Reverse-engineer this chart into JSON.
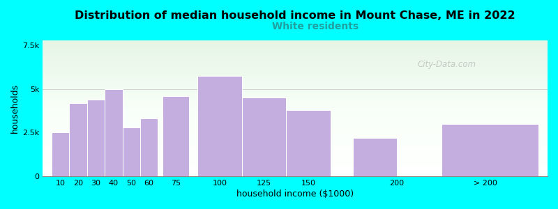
{
  "title": "Distribution of median household income in Mount Chase, ME in 2022",
  "subtitle": "White residents",
  "xlabel": "household income ($1000)",
  "ylabel": "households",
  "background_color": "#00FFFF",
  "bar_color": "#C4AEE0",
  "bar_edge_color": "#ffffff",
  "title_fontsize": 11.5,
  "subtitle_fontsize": 10,
  "subtitle_color": "#20a0a0",
  "axis_label_fontsize": 9,
  "tick_fontsize": 8,
  "categories": [
    "10",
    "20",
    "30",
    "40",
    "50",
    "60",
    "75",
    "100",
    "125",
    "150",
    "200",
    "> 200"
  ],
  "left_edges": [
    5,
    15,
    25,
    35,
    45,
    55,
    67.5,
    87.5,
    112.5,
    137.5,
    175,
    225
  ],
  "bar_widths": [
    10,
    10,
    10,
    10,
    10,
    10,
    15,
    25,
    25,
    25,
    25,
    55
  ],
  "tick_positions": [
    10,
    20,
    30,
    40,
    50,
    60,
    75,
    100,
    125,
    150,
    200,
    250
  ],
  "values": [
    2500,
    4200,
    4400,
    5000,
    2800,
    3300,
    4600,
    5750,
    4500,
    3800,
    2200,
    3000
  ],
  "yticks": [
    0,
    2500,
    5000,
    7500
  ],
  "ytick_labels": [
    "0",
    "2.5k",
    "5k",
    "7.5k"
  ],
  "ylim": [
    0,
    7800
  ],
  "xlim": [
    0,
    285
  ],
  "watermark": "City-Data.com"
}
